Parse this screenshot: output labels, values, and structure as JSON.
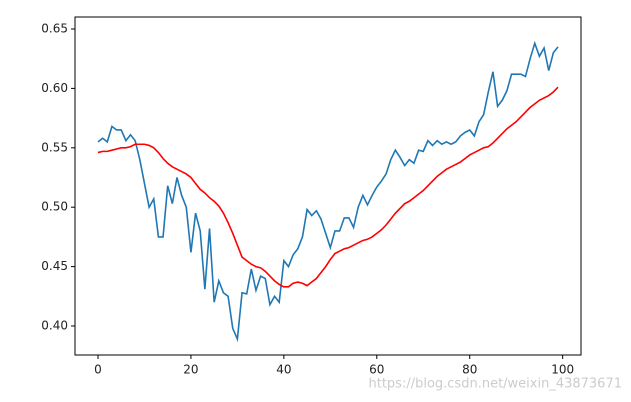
{
  "chart_data": {
    "type": "line",
    "x": [
      0,
      1,
      2,
      3,
      4,
      5,
      6,
      7,
      8,
      9,
      10,
      11,
      12,
      13,
      14,
      15,
      16,
      17,
      18,
      19,
      20,
      21,
      22,
      23,
      24,
      25,
      26,
      27,
      28,
      29,
      30,
      31,
      32,
      33,
      34,
      35,
      36,
      37,
      38,
      39,
      40,
      41,
      42,
      43,
      44,
      45,
      46,
      47,
      48,
      49,
      50,
      51,
      52,
      53,
      54,
      55,
      56,
      57,
      58,
      59,
      60,
      61,
      62,
      63,
      64,
      65,
      66,
      67,
      68,
      69,
      70,
      71,
      72,
      73,
      74,
      75,
      76,
      77,
      78,
      79,
      80,
      81,
      82,
      83,
      84,
      85,
      86,
      87,
      88,
      89,
      90,
      91,
      92,
      93,
      94,
      95,
      96,
      97,
      98,
      99
    ],
    "series": [
      {
        "color": "#1f77b4",
        "values": [
          0.555,
          0.558,
          0.555,
          0.568,
          0.565,
          0.565,
          0.556,
          0.561,
          0.556,
          0.54,
          0.52,
          0.5,
          0.507,
          0.475,
          0.475,
          0.518,
          0.503,
          0.525,
          0.51,
          0.5,
          0.462,
          0.495,
          0.48,
          0.431,
          0.482,
          0.42,
          0.438,
          0.428,
          0.425,
          0.398,
          0.389,
          0.428,
          0.427,
          0.448,
          0.43,
          0.442,
          0.44,
          0.418,
          0.425,
          0.42,
          0.455,
          0.45,
          0.46,
          0.465,
          0.475,
          0.498,
          0.493,
          0.497,
          0.49,
          0.478,
          0.466,
          0.48,
          0.48,
          0.491,
          0.491,
          0.483,
          0.5,
          0.51,
          0.502,
          0.51,
          0.517,
          0.522,
          0.528,
          0.54,
          0.548,
          0.542,
          0.535,
          0.54,
          0.537,
          0.548,
          0.547,
          0.556,
          0.552,
          0.556,
          0.553,
          0.555,
          0.553,
          0.555,
          0.56,
          0.563,
          0.565,
          0.56,
          0.572,
          0.578,
          0.597,
          0.614,
          0.585,
          0.59,
          0.598,
          0.612,
          0.612,
          0.612,
          0.61,
          0.625,
          0.638,
          0.627,
          0.634,
          0.615,
          0.63,
          0.635
        ]
      },
      {
        "color": "#ff0000",
        "values": [
          0.546,
          0.547,
          0.547,
          0.548,
          0.549,
          0.55,
          0.55,
          0.551,
          0.553,
          0.553,
          0.553,
          0.552,
          0.55,
          0.546,
          0.541,
          0.537,
          0.534,
          0.532,
          0.53,
          0.528,
          0.525,
          0.52,
          0.515,
          0.512,
          0.508,
          0.505,
          0.501,
          0.495,
          0.487,
          0.478,
          0.468,
          0.458,
          0.455,
          0.452,
          0.45,
          0.449,
          0.446,
          0.442,
          0.438,
          0.435,
          0.433,
          0.433,
          0.436,
          0.437,
          0.436,
          0.434,
          0.437,
          0.44,
          0.445,
          0.45,
          0.456,
          0.461,
          0.463,
          0.465,
          0.466,
          0.468,
          0.47,
          0.472,
          0.473,
          0.475,
          0.478,
          0.481,
          0.485,
          0.49,
          0.495,
          0.499,
          0.503,
          0.505,
          0.508,
          0.511,
          0.514,
          0.518,
          0.522,
          0.526,
          0.529,
          0.532,
          0.534,
          0.536,
          0.538,
          0.541,
          0.544,
          0.546,
          0.548,
          0.55,
          0.551,
          0.554,
          0.558,
          0.562,
          0.566,
          0.569,
          0.572,
          0.576,
          0.58,
          0.584,
          0.587,
          0.59,
          0.592,
          0.594,
          0.597,
          0.601
        ]
      }
    ],
    "xlim": [
      -4.95,
      103.95
    ],
    "xticks": [
      0,
      20,
      40,
      60,
      80,
      100
    ],
    "ylim": [
      0.3756,
      0.6601
    ],
    "yticks": [
      {
        "value": 0.4,
        "label": "0.40"
      },
      {
        "value": 0.45,
        "label": "0.45"
      },
      {
        "value": 0.5,
        "label": "0.50"
      },
      {
        "value": 0.55,
        "label": "0.55"
      },
      {
        "value": 0.6,
        "label": "0.60"
      },
      {
        "value": 0.65,
        "label": "0.65"
      }
    ],
    "watermark": "https://blog.csdn.net/weixin_43873671"
  }
}
